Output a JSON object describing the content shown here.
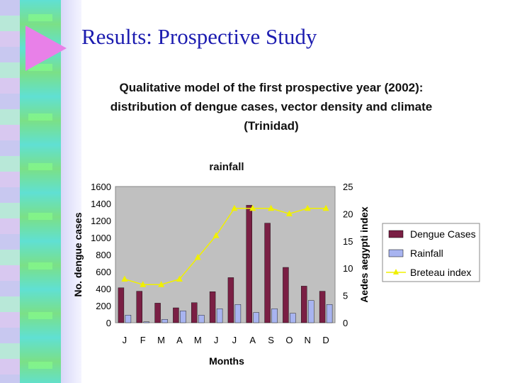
{
  "slide": {
    "title": "Results: Prospective Study"
  },
  "colors": {
    "dengue": "#7a1f44",
    "rainfall": "#a8b4f0",
    "breteau": "#f0f000",
    "plot_bg": "#c0c0c0",
    "title_blue": "#1c1cb0"
  },
  "chart_data": {
    "type": "bar",
    "title_lines": [
      "Qualitative model of the first prospective year (2002):",
      "distribution of dengue cases, vector density and climate",
      "(Trinidad)"
    ],
    "subtitle": "rainfall",
    "xlabel": "Months",
    "ylabel_left": "No. dengue cases",
    "ylabel_right": "Aedes aegypti index",
    "categories": [
      "J",
      "F",
      "M",
      "A",
      "M",
      "J",
      "J",
      "A",
      "S",
      "O",
      "N",
      "D"
    ],
    "ylim_left": [
      0,
      1600
    ],
    "yticks_left": [
      "0",
      "200",
      "400",
      "600",
      "800",
      "1000",
      "1200",
      "1400",
      "1600"
    ],
    "ylim_right": [
      0,
      25
    ],
    "yticks_right": [
      "0",
      "5",
      "10",
      "15",
      "20",
      "25"
    ],
    "series": [
      {
        "name": "Dengue Cases",
        "axis": "left",
        "kind": "bar",
        "values": [
          410,
          370,
          230,
          175,
          235,
          365,
          530,
          1380,
          1170,
          650,
          430,
          370
        ]
      },
      {
        "name": "Rainfall",
        "axis": "left",
        "kind": "bar",
        "values": [
          90,
          10,
          40,
          140,
          90,
          165,
          215,
          120,
          165,
          110,
          260,
          215
        ]
      },
      {
        "name": "Breteau index",
        "axis": "right",
        "kind": "line",
        "values": [
          8,
          7,
          7,
          8,
          12,
          16,
          21,
          21,
          21,
          20,
          21,
          21
        ]
      }
    ],
    "legend_position": "right",
    "grid": false
  }
}
